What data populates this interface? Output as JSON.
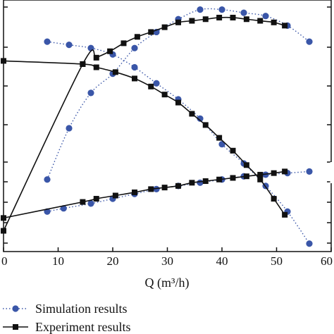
{
  "chart_data": {
    "type": "line",
    "xlabel": "Q (m³/h)",
    "xlim": [
      0,
      60
    ],
    "x_ticks": [
      "0",
      "10",
      "20",
      "30",
      "40",
      "50",
      "60"
    ],
    "grid": false,
    "legend_placement": "bottom-left",
    "colors": {
      "simulation": "#3a56a8",
      "experiment": "#111111"
    },
    "series": [
      {
        "name": "Simulation results",
        "style": "dotted-circles",
        "curves": [
          {
            "x": [
              8,
              12,
              16,
              20,
              24,
              28,
              32,
              36,
              40,
              44,
              48,
              52,
              56
            ],
            "y": [
              0.15,
              0.31,
              0.42,
              0.48,
              0.56,
              0.61,
              0.65,
              0.68,
              0.68,
              0.67,
              0.66,
              0.63,
              0.58
            ]
          },
          {
            "x": [
              8,
              12,
              16,
              20,
              24,
              28,
              32,
              36,
              40,
              44,
              48,
              52,
              56
            ],
            "y": [
              0.58,
              0.57,
              0.56,
              0.54,
              0.5,
              0.45,
              0.4,
              0.34,
              0.26,
              0.2,
              0.13,
              0.05,
              -0.05
            ]
          },
          {
            "x": [
              8,
              11,
              16,
              20,
              24,
              28,
              32,
              36,
              40,
              44,
              48,
              52,
              56
            ],
            "y": [
              0.05,
              0.06,
              0.075,
              0.09,
              0.105,
              0.12,
              0.13,
              0.14,
              0.15,
              0.16,
              0.165,
              0.17,
              0.175
            ]
          }
        ]
      },
      {
        "name": "Experiment results",
        "style": "solid-squares",
        "curves": [
          {
            "x": [
              0,
              14.5,
              17,
              19.5,
              22,
              24.5,
              27,
              29.5,
              32,
              34.5,
              37,
              39.5,
              42,
              44.5,
              47,
              49.5,
              51.5
            ],
            "y": [
              -0.01,
              0.51,
              0.53,
              0.55,
              0.575,
              0.595,
              0.61,
              0.625,
              0.64,
              0.645,
              0.65,
              0.655,
              0.655,
              0.65,
              0.645,
              0.64,
              0.63
            ]
          },
          {
            "x": [
              0,
              14.5,
              17,
              20.5,
              24,
              27,
              29.5,
              32,
              34.5,
              37,
              39.5,
              42,
              44.5,
              47,
              49.5,
              51.5
            ],
            "y": [
              0.52,
              0.51,
              0.5,
              0.485,
              0.465,
              0.44,
              0.415,
              0.39,
              0.355,
              0.32,
              0.28,
              0.24,
              0.195,
              0.15,
              0.09,
              0.04
            ]
          },
          {
            "x": [
              0,
              14.5,
              17,
              20.5,
              24,
              27,
              29.5,
              32,
              34.5,
              37,
              39.5,
              42,
              44.5,
              47,
              49.5,
              51.5
            ],
            "y": [
              0.03,
              0.08,
              0.09,
              0.1,
              0.11,
              0.12,
              0.125,
              0.13,
              0.14,
              0.145,
              0.15,
              0.155,
              0.16,
              0.165,
              0.17,
              0.175
            ]
          }
        ]
      }
    ]
  }
}
